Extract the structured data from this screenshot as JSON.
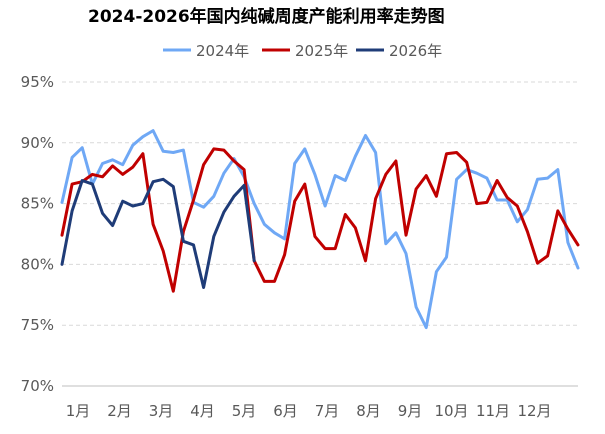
{
  "chart_data": {
    "type": "line",
    "title": "2024-2026年国内纯碱周度产能利用率走势图",
    "ylim": [
      70,
      95
    ],
    "y_ticks": [
      "70%",
      "75%",
      "80%",
      "85%",
      "90%",
      "95%"
    ],
    "x_ticks": [
      "1月",
      "2月",
      "3月",
      "4月",
      "5月",
      "6月",
      "7月",
      "8月",
      "9月",
      "10月",
      "11月",
      "12月"
    ],
    "grid": true,
    "legend_position": "top",
    "x_unit": "week",
    "series": [
      {
        "name": "2024年",
        "color": "#6FA8F5",
        "x": [
          1,
          2,
          3,
          4,
          5,
          6,
          7,
          8,
          9,
          10,
          11,
          12,
          13,
          14,
          15,
          16,
          17,
          18,
          19,
          20,
          21,
          22,
          23,
          24,
          25,
          26,
          27,
          28,
          29,
          30,
          31,
          32,
          33,
          34,
          35,
          36,
          37,
          38,
          39,
          40,
          41,
          42,
          43,
          44,
          45,
          46,
          47,
          48,
          49,
          50,
          51,
          52
        ],
        "values": [
          85.1,
          88.8,
          89.6,
          86.6,
          88.3,
          88.6,
          88.2,
          89.8,
          90.5,
          91.0,
          89.3,
          89.2,
          89.4,
          85.1,
          84.7,
          85.6,
          87.5,
          88.7,
          87.2,
          85.0,
          83.3,
          82.6,
          82.1,
          88.3,
          89.5,
          87.4,
          84.8,
          87.3,
          86.9,
          88.9,
          90.6,
          89.2,
          81.7,
          82.6,
          80.9,
          76.5,
          74.8,
          79.4,
          80.6,
          87.0,
          87.8,
          87.5,
          87.1,
          85.3,
          85.3,
          83.5,
          84.5,
          87.0,
          87.1,
          87.8,
          81.8,
          79.7
        ]
      },
      {
        "name": "2025年",
        "color": "#C00000",
        "x": [
          1,
          2,
          3,
          4,
          5,
          6,
          7,
          8,
          9,
          10,
          11,
          12,
          13,
          14,
          15,
          16,
          17,
          18,
          19,
          20,
          21,
          22,
          23,
          24,
          25,
          26,
          27,
          28,
          29,
          30,
          31,
          32,
          33,
          34,
          35,
          36,
          37,
          38,
          39,
          40,
          41,
          42,
          43,
          44,
          45,
          46,
          47,
          48,
          49,
          50,
          51,
          52
        ],
        "values": [
          82.4,
          86.6,
          86.8,
          87.4,
          87.2,
          88.1,
          87.4,
          88.0,
          89.1,
          83.3,
          81.1,
          77.8,
          82.7,
          85.3,
          88.2,
          89.5,
          89.4,
          88.5,
          87.8,
          80.3,
          78.6,
          78.6,
          80.8,
          85.2,
          86.6,
          82.3,
          81.3,
          81.3,
          84.1,
          83.0,
          80.3,
          85.4,
          87.4,
          88.5,
          82.4,
          86.2,
          87.3,
          85.6,
          89.1,
          89.2,
          88.4,
          85.0,
          85.1,
          86.9,
          85.5,
          84.8,
          82.7,
          80.1,
          80.7,
          84.4,
          82.9,
          81.6
        ]
      },
      {
        "name": "2026年",
        "color": "#1F3C78",
        "x": [
          1,
          2,
          3,
          4,
          5,
          6,
          7,
          8,
          9,
          10,
          11,
          12,
          13,
          14,
          15,
          16,
          17,
          18,
          19,
          20
        ],
        "values": [
          80.0,
          84.4,
          86.9,
          86.6,
          84.2,
          83.2,
          85.2,
          84.8,
          85.0,
          86.8,
          87.0,
          86.4,
          81.9,
          81.6,
          78.1,
          82.3,
          84.3,
          85.6,
          86.5,
          80.3
        ]
      }
    ]
  }
}
